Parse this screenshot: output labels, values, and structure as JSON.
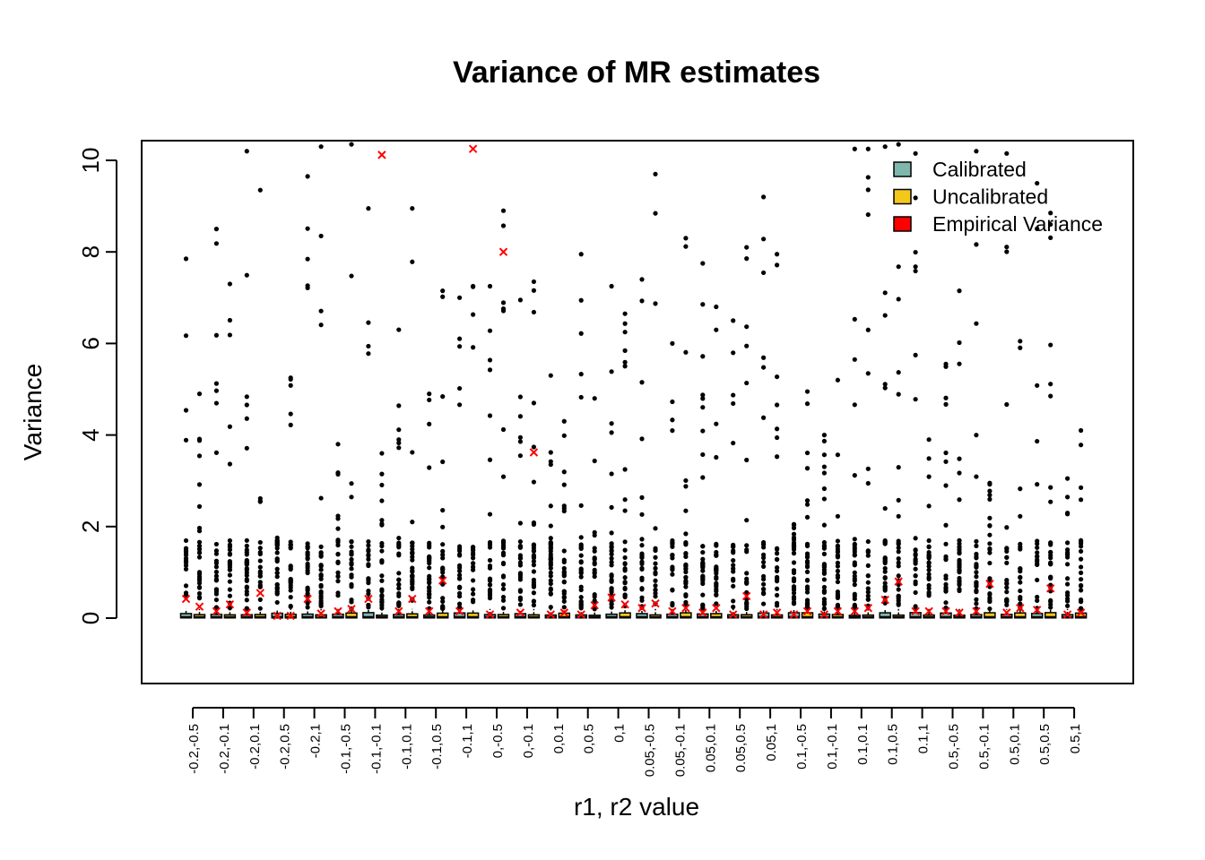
{
  "chart_data": {
    "type": "box",
    "title": "Variance of MR estimates",
    "xlabel": "r1, r2 value",
    "ylabel": "Variance",
    "ylim": [
      -1.45,
      10.45
    ],
    "yticks": [
      0,
      2,
      4,
      6,
      8,
      10
    ],
    "grid": false,
    "legend_position": "top-right",
    "legend": [
      {
        "name": "Calibrated",
        "color": "#7fb7ad"
      },
      {
        "name": "Uncalibrated",
        "color": "#f4c81b"
      },
      {
        "name": "Empirical Variance",
        "color": "#ff0000"
      }
    ],
    "categories": [
      "-0.2,-0.5",
      "-0.2,-0.1",
      "-0.2,0.1",
      "-0.2,0.5",
      "-0.2,1",
      "-0.1,-0.5",
      "-0.1,-0.1",
      "-0.1,0.1",
      "-0.1,0.5",
      "-0.1,1",
      "0,-0.5",
      "0,-0.1",
      "0,0.1",
      "0,0.5",
      "0,1",
      "0.05,-0.5",
      "0.05,-0.1",
      "0.05,0.1",
      "0.05,0.5",
      "0.05,1",
      "0.1,-0.5",
      "0.1,-0.1",
      "0.1,0.1",
      "0.1,0.5",
      "0.1,1",
      "0.5,-0.5",
      "0.5,-0.1",
      "0.5,0.1",
      "0.5,0.5",
      "0.5,1"
    ],
    "empirical_variance": [
      [
        0.42,
        0.25
      ],
      [
        0.15,
        0.3
      ],
      [
        0.12,
        0.55
      ],
      [
        0.05,
        0.05
      ],
      [
        0.42,
        0.1
      ],
      [
        0.15,
        0.2
      ],
      [
        0.42,
        10.12
      ],
      [
        0.15,
        0.42
      ],
      [
        0.15,
        0.82
      ],
      [
        0.15,
        10.25
      ],
      [
        0.08,
        8.0
      ],
      [
        0.12,
        3.62
      ],
      [
        0.08,
        0.12
      ],
      [
        0.08,
        0.28
      ],
      [
        0.45,
        0.3
      ],
      [
        0.22,
        0.32
      ],
      [
        0.15,
        0.22
      ],
      [
        0.12,
        0.22
      ],
      [
        0.08,
        0.48
      ],
      [
        0.08,
        0.12
      ],
      [
        0.08,
        0.15
      ],
      [
        0.08,
        0.15
      ],
      [
        0.15,
        0.22
      ],
      [
        0.4,
        0.8
      ],
      [
        0.15,
        0.15
      ],
      [
        0.15,
        0.12
      ],
      [
        0.15,
        0.75
      ],
      [
        0.12,
        0.22
      ],
      [
        0.18,
        0.65
      ],
      [
        0.08,
        0.12
      ]
    ],
    "outlier_max": [
      [
        7.85,
        4.9
      ],
      [
        8.5,
        7.3
      ],
      [
        10.2,
        9.35
      ],
      [
        1.6,
        5.25
      ],
      [
        9.65,
        10.3
      ],
      [
        3.8,
        10.35
      ],
      [
        8.95,
        3.6
      ],
      [
        6.3,
        8.95
      ],
      [
        4.9,
        7.15
      ],
      [
        7.0,
        7.25
      ],
      [
        7.25,
        8.9
      ],
      [
        6.95,
        7.35
      ],
      [
        5.3,
        4.3
      ],
      [
        7.95,
        4.8
      ],
      [
        7.25,
        6.65
      ],
      [
        7.4,
        9.7
      ],
      [
        6.0,
        8.3
      ],
      [
        7.75,
        6.8
      ],
      [
        6.5,
        8.1
      ],
      [
        9.2,
        7.95
      ],
      [
        2.05,
        4.95
      ],
      [
        4.0,
        5.2
      ],
      [
        10.25,
        10.25
      ],
      [
        10.3,
        10.35
      ],
      [
        10.15,
        3.9
      ],
      [
        5.55,
        7.15
      ],
      [
        10.2,
        2.95
      ],
      [
        10.15,
        6.05
      ],
      [
        9.5,
        8.85
      ],
      [
        3.05,
        4.1
      ]
    ]
  }
}
